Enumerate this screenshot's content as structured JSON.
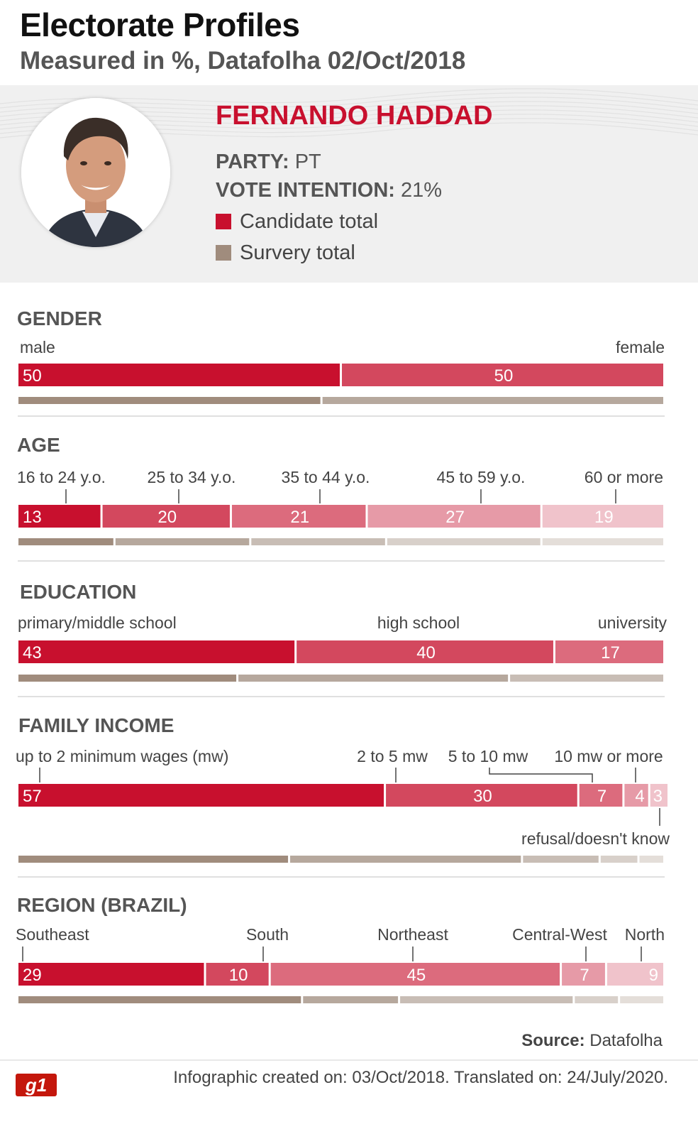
{
  "header": {
    "title": "Electorate Profiles",
    "subtitle": "Measured in %, Datafolha 02/Oct/2018"
  },
  "candidate": {
    "name": "FERNANDO HADDAD",
    "party_label": "PARTY:",
    "party_value": "PT",
    "vote_label": "VOTE INTENTION:",
    "vote_value": "21%",
    "legend": [
      {
        "label": "Candidate total",
        "color": "#c8102e"
      },
      {
        "label": "Survery total",
        "color": "#a08c7d"
      }
    ]
  },
  "colors": {
    "candidate_scale": [
      "#c8102e",
      "#d3485e",
      "#dc6b7d",
      "#e69aa7",
      "#f0c3cb",
      "#f7dde2"
    ],
    "survey_scale": [
      "#a08c7d",
      "#b6a89d",
      "#c8bdb5",
      "#d8d0ca",
      "#e4ded9",
      "#eeeae7"
    ]
  },
  "chart_data": {
    "type": "bar",
    "orientation": "horizontal stacked (100%)",
    "sections": [
      {
        "title": "GENDER",
        "categories": [
          "male",
          "female"
        ],
        "values": [
          50,
          50
        ],
        "survey_values": [
          47,
          53
        ]
      },
      {
        "title": "AGE",
        "categories": [
          "16 to 24 y.o.",
          "25 to 34 y.o.",
          "35 to 44 y.o.",
          "45 to 59 y.o.",
          "60 or more"
        ],
        "values": [
          13,
          20,
          21,
          27,
          19
        ],
        "survey_values": [
          15,
          21,
          21,
          24,
          19
        ]
      },
      {
        "title": "EDUCATION",
        "categories": [
          "primary/middle school",
          "high school",
          "university"
        ],
        "values": [
          43,
          40,
          17
        ],
        "survey_values": [
          34,
          42,
          24
        ]
      },
      {
        "title": "FAMILY INCOME",
        "categories": [
          "up to 2 minimum wages (mw)",
          "2 to 5 mw",
          "5 to 10 mw",
          "10 mw or more",
          "refusal/doesn't know"
        ],
        "values": [
          57,
          30,
          7,
          4,
          3
        ],
        "survey_values": [
          42,
          36,
          12,
          6,
          4
        ]
      },
      {
        "title": "REGION (BRAZIL)",
        "categories": [
          "Southeast",
          "South",
          "Northeast",
          "Central-West",
          "North"
        ],
        "values": [
          29,
          10,
          45,
          7,
          9
        ],
        "survey_values": [
          44,
          15,
          27,
          7,
          7
        ]
      }
    ]
  },
  "footer": {
    "source_label": "Source:",
    "source_value": "Datafolha",
    "created": "Infographic created on: 03/Oct/2018. Translated on: 24/July/2020.",
    "logo_text": "g1"
  }
}
